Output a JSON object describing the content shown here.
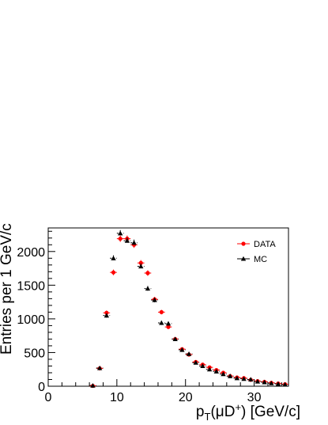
{
  "chart_data": {
    "type": "scatter",
    "xlabel": "p",
    "xlabel_sub": "T",
    "xlabel_mid": "(μD",
    "xlabel_sup": "+",
    "xlabel_tail": ") [GeV/c]",
    "ylabel": "Entries per 1 GeV/c",
    "xlim": [
      0,
      35
    ],
    "ylim": [
      0,
      2350
    ],
    "xticks": [
      0,
      10,
      20,
      30
    ],
    "yticks": [
      0,
      500,
      1000,
      1500,
      2000
    ],
    "grid": false,
    "legend_position": "top-right",
    "series": [
      {
        "name": "DATA",
        "color": "#ff0000",
        "marker": "circle",
        "x": [
          6.5,
          7.5,
          8.5,
          9.5,
          10.5,
          11.5,
          12.5,
          13.5,
          14.5,
          15.5,
          16.5,
          17.5,
          18.5,
          19.5,
          20.5,
          21.5,
          22.5,
          23.5,
          24.5,
          25.5,
          26.5,
          27.5,
          28.5,
          29.5,
          30.5,
          31.5,
          32.5,
          33.5,
          34.5
        ],
        "y": [
          5,
          265,
          1090,
          1690,
          2190,
          2190,
          2100,
          1830,
          1680,
          1290,
          1100,
          880,
          700,
          550,
          470,
          360,
          320,
          280,
          240,
          200,
          150,
          130,
          120,
          95,
          75,
          65,
          50,
          40,
          30
        ]
      },
      {
        "name": "MC",
        "color": "#000000",
        "marker": "triangle",
        "x": [
          6.5,
          7.5,
          8.5,
          9.5,
          10.5,
          11.5,
          12.5,
          13.5,
          14.5,
          15.5,
          16.5,
          17.5,
          18.5,
          19.5,
          20.5,
          21.5,
          22.5,
          23.5,
          24.5,
          25.5,
          26.5,
          27.5,
          28.5,
          29.5,
          30.5,
          31.5,
          32.5,
          33.5,
          34.5
        ],
        "y": [
          10,
          270,
          1050,
          1900,
          2270,
          2160,
          2130,
          1780,
          1450,
          1280,
          940,
          930,
          700,
          540,
          480,
          350,
          300,
          250,
          220,
          180,
          150,
          120,
          110,
          100,
          70,
          60,
          45,
          35,
          25
        ]
      }
    ]
  }
}
